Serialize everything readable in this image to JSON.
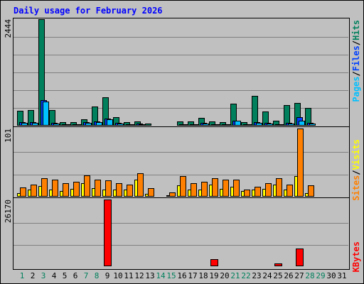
{
  "title": "Daily usage for February 2026",
  "right_labels": {
    "pages": "Pages",
    "files": "Files",
    "hits": "Hits",
    "sites": "Sites",
    "visits": "Visits",
    "kbytes": "KBytes",
    "sep": "/"
  },
  "colors": {
    "title": "#0000ff",
    "hits": "#00805c",
    "files": "#0040ff",
    "pages": "#00c0ff",
    "visits": "#ffff00",
    "sites": "#ff8000",
    "kbytes": "#ff0000",
    "weekday": "#000000",
    "weekend": "#00805c"
  },
  "chart_data": [
    {
      "type": "bar",
      "ylabel": "2444",
      "ylim": [
        0,
        2444
      ],
      "categories": [
        "1",
        "2",
        "3",
        "4",
        "5",
        "6",
        "7",
        "8",
        "9",
        "10",
        "11",
        "12",
        "13",
        "14",
        "15",
        "16",
        "17",
        "18",
        "19",
        "20",
        "21",
        "22",
        "23",
        "24",
        "25",
        "26",
        "27",
        "28",
        "29",
        "30",
        "31"
      ],
      "weekend": [
        1,
        3,
        7,
        8,
        14,
        15,
        21,
        22,
        28,
        29
      ],
      "series": [
        {
          "name": "Hits",
          "key": "hits",
          "values": [
            340,
            360,
            2444,
            360,
            80,
            80,
            150,
            440,
            650,
            200,
            80,
            100,
            50,
            0,
            20,
            100,
            100,
            180,
            100,
            80,
            510,
            80,
            680,
            320,
            110,
            480,
            520,
            410,
            0,
            0,
            0
          ]
        },
        {
          "name": "Files",
          "key": "files",
          "values": [
            80,
            80,
            590,
            70,
            40,
            40,
            80,
            100,
            170,
            60,
            40,
            50,
            20,
            0,
            10,
            40,
            40,
            60,
            40,
            40,
            120,
            40,
            80,
            60,
            40,
            60,
            190,
            60,
            0,
            0,
            0
          ]
        },
        {
          "name": "Pages",
          "key": "pages",
          "values": [
            60,
            60,
            560,
            50,
            30,
            30,
            60,
            80,
            150,
            50,
            30,
            40,
            15,
            0,
            5,
            30,
            30,
            50,
            30,
            30,
            110,
            30,
            60,
            50,
            30,
            50,
            110,
            50,
            0,
            0,
            0
          ]
        }
      ]
    },
    {
      "type": "bar",
      "ylabel": "101",
      "ylim": [
        0,
        101
      ],
      "categories": [
        "1",
        "2",
        "3",
        "4",
        "5",
        "6",
        "7",
        "8",
        "9",
        "10",
        "11",
        "12",
        "13",
        "14",
        "15",
        "16",
        "17",
        "18",
        "19",
        "20",
        "21",
        "22",
        "23",
        "24",
        "25",
        "26",
        "27",
        "28",
        "29",
        "30",
        "31"
      ],
      "series": [
        {
          "name": "Visits",
          "key": "visits",
          "values": [
            5,
            10,
            16,
            10,
            8,
            12,
            20,
            13,
            11,
            10,
            11,
            25,
            4,
            0,
            2,
            17,
            11,
            10,
            18,
            12,
            15,
            8,
            10,
            12,
            18,
            10,
            30,
            5,
            0,
            0,
            0
          ]
        },
        {
          "name": "Sites",
          "key": "sites",
          "values": [
            14,
            18,
            27,
            25,
            20,
            22,
            32,
            25,
            24,
            20,
            18,
            35,
            13,
            0,
            6,
            30,
            20,
            22,
            27,
            25,
            25,
            10,
            15,
            20,
            27,
            18,
            101,
            17,
            0,
            0,
            0
          ]
        }
      ]
    },
    {
      "type": "bar",
      "ylabel": "26170",
      "ylim": [
        0,
        26170
      ],
      "categories": [
        "1",
        "2",
        "3",
        "4",
        "5",
        "6",
        "7",
        "8",
        "9",
        "10",
        "11",
        "12",
        "13",
        "14",
        "15",
        "16",
        "17",
        "18",
        "19",
        "20",
        "21",
        "22",
        "23",
        "24",
        "25",
        "26",
        "27",
        "28",
        "29",
        "30",
        "31"
      ],
      "series": [
        {
          "name": "KBytes",
          "key": "kbytes",
          "values": [
            300,
            300,
            300,
            300,
            300,
            300,
            300,
            300,
            26170,
            300,
            300,
            300,
            300,
            0,
            300,
            300,
            300,
            300,
            2800,
            300,
            300,
            300,
            300,
            300,
            1000,
            300,
            6900,
            300,
            0,
            0,
            0
          ]
        }
      ]
    }
  ]
}
